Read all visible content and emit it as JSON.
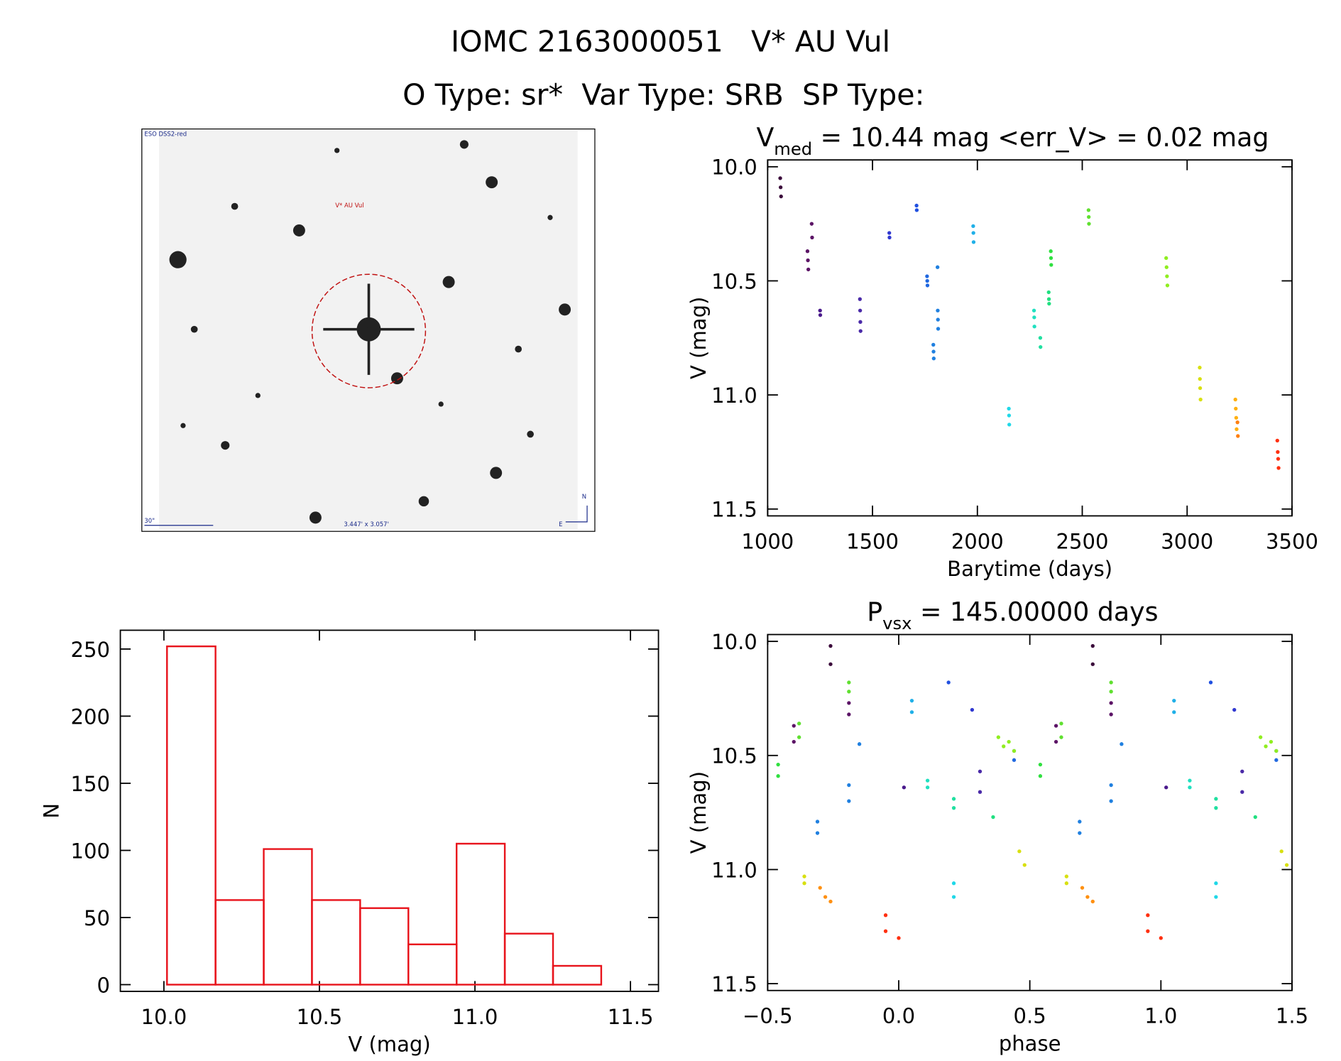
{
  "header": {
    "title": "IOMC 2163000051   V* AU Vul",
    "subtitle": "O Type: sr*  Var Type: SRB  SP Type:"
  },
  "image": {
    "survey": "ESO DSS2-red",
    "target": "V* AU Vul",
    "scale": "30\"",
    "size": "3.447' x 3.057'",
    "north": "N",
    "east": "E"
  },
  "chart_data": [
    {
      "type": "scatter",
      "title": {
        "text": "V",
        "sub": "med",
        "rest": " = 10.44 mag <err_V> = 0.02 mag"
      },
      "x_label": "Barytime (days)",
      "y_label": "V (mag)",
      "xlim": [
        1000,
        3500
      ],
      "xticks": [
        1000,
        1500,
        2000,
        2500,
        3000,
        3500
      ],
      "ylim": [
        9.97,
        11.53
      ],
      "y_reversed": true,
      "yticks": [
        {
          "value": 10,
          "label": "10.0"
        },
        10.5,
        {
          "value": 11,
          "label": "11.0"
        },
        11.5
      ],
      "series": [
        {
          "color": "#3b0b3b",
          "x": [
            1060,
            1062,
            1064
          ],
          "values": [
            10.05,
            10.09,
            10.13
          ]
        },
        {
          "color": "#5c1466",
          "x": [
            1190,
            1192,
            1194,
            1210,
            1212
          ],
          "values": [
            10.37,
            10.41,
            10.45,
            10.25,
            10.31
          ]
        },
        {
          "color": "#4a1a8c",
          "x": [
            1250,
            1251
          ],
          "values": [
            10.63,
            10.65
          ]
        },
        {
          "color": "#4a2aa8",
          "x": [
            1440,
            1441,
            1442,
            1443
          ],
          "values": [
            10.58,
            10.63,
            10.68,
            10.72
          ]
        },
        {
          "color": "#3038d0",
          "x": [
            1580,
            1581
          ],
          "values": [
            10.29,
            10.31
          ]
        },
        {
          "color": "#2050e0",
          "x": [
            1710,
            1711
          ],
          "values": [
            10.17,
            10.19
          ]
        },
        {
          "color": "#2068e0",
          "x": [
            1760,
            1761,
            1762
          ],
          "values": [
            10.48,
            10.5,
            10.52
          ]
        },
        {
          "color": "#2080e0",
          "x": [
            1790,
            1791,
            1792,
            1810,
            1811,
            1812,
            1813
          ],
          "values": [
            10.78,
            10.81,
            10.84,
            10.44,
            10.63,
            10.67,
            10.71
          ]
        },
        {
          "color": "#20b0e8",
          "x": [
            1980,
            1981,
            1982
          ],
          "values": [
            10.26,
            10.29,
            10.33
          ]
        },
        {
          "color": "#20d8e8",
          "x": [
            2150,
            2151,
            2152
          ],
          "values": [
            11.06,
            11.09,
            11.13
          ]
        },
        {
          "color": "#20e0c0",
          "x": [
            2270,
            2271,
            2272
          ],
          "values": [
            10.63,
            10.66,
            10.7
          ]
        },
        {
          "color": "#20e0a0",
          "x": [
            2300,
            2301
          ],
          "values": [
            10.75,
            10.79
          ]
        },
        {
          "color": "#20e080",
          "x": [
            2340,
            2341,
            2342
          ],
          "values": [
            10.55,
            10.58,
            10.6
          ]
        },
        {
          "color": "#30e040",
          "x": [
            2350,
            2351,
            2352
          ],
          "values": [
            10.37,
            10.4,
            10.43
          ]
        },
        {
          "color": "#60e030",
          "x": [
            2530,
            2531,
            2532
          ],
          "values": [
            10.19,
            10.22,
            10.25
          ]
        },
        {
          "color": "#90ee20",
          "x": [
            2900,
            2902,
            2904,
            2906
          ],
          "values": [
            10.4,
            10.44,
            10.48,
            10.52
          ]
        },
        {
          "color": "#d8e010",
          "x": [
            3060,
            3061,
            3062,
            3064
          ],
          "values": [
            10.88,
            10.93,
            10.97,
            11.02
          ]
        },
        {
          "color": "#ffb010",
          "x": [
            3230,
            3232,
            3234,
            3236
          ],
          "values": [
            11.02,
            11.06,
            11.1,
            11.15
          ]
        },
        {
          "color": "#ff8010",
          "x": [
            3240,
            3242
          ],
          "values": [
            11.12,
            11.18
          ]
        },
        {
          "color": "#ff3010",
          "x": [
            3430,
            3432,
            3434,
            3436
          ],
          "values": [
            11.2,
            11.25,
            11.28,
            11.32
          ]
        }
      ]
    },
    {
      "type": "histogram",
      "x_label": "V (mag)",
      "y_label": "N",
      "color": "#e8141c",
      "bins": [
        10.01,
        10.166,
        10.321,
        10.476,
        10.631,
        10.786,
        10.941,
        11.096,
        11.251,
        11.406
      ],
      "values": [
        252,
        63,
        101,
        63,
        57,
        30,
        105,
        38,
        14
      ],
      "xlim": [
        9.86,
        11.59
      ],
      "xticks": [
        {
          "value": 10,
          "label": "10.0"
        },
        10.5,
        {
          "value": 11,
          "label": "11.0"
        },
        11.5
      ],
      "ylim": [
        -5,
        264
      ],
      "yticks": [
        0,
        50,
        100,
        150,
        200,
        250
      ]
    },
    {
      "type": "scatter",
      "title": {
        "text": "P",
        "sub": "vsx",
        "rest": " = 145.00000 days"
      },
      "x_label": "phase",
      "y_label": "V (mag)",
      "xlim": [
        -0.5,
        1.5
      ],
      "xticks": [
        {
          "value": -0.5,
          "label": "−0.5"
        },
        {
          "value": 0,
          "label": "0.0"
        },
        0.5,
        {
          "value": 1,
          "label": "1.0"
        },
        1.5
      ],
      "ylim": [
        9.97,
        11.53
      ],
      "y_reversed": true,
      "yticks": [
        {
          "value": 10,
          "label": "10.0"
        },
        10.5,
        {
          "value": 11,
          "label": "11.0"
        },
        11.5
      ],
      "series": [
        {
          "color": "#3b0b3b",
          "x": [
            -0.26,
            -0.26,
            0.74,
            0.74
          ],
          "values": [
            10.02,
            10.1,
            10.02,
            10.1
          ]
        },
        {
          "color": "#5c1466",
          "x": [
            -0.4,
            -0.4,
            -0.19,
            -0.19,
            0.6,
            0.6,
            0.81,
            0.81
          ],
          "values": [
            10.37,
            10.44,
            10.27,
            10.32,
            10.37,
            10.44,
            10.27,
            10.32
          ]
        },
        {
          "color": "#4a1a8c",
          "x": [
            0.02,
            1.02
          ],
          "values": [
            10.64,
            10.64
          ]
        },
        {
          "color": "#4a2aa8",
          "x": [
            0.31,
            0.31,
            1.31,
            1.31
          ],
          "values": [
            10.57,
            10.66,
            10.57,
            10.66
          ]
        },
        {
          "color": "#3038d0",
          "x": [
            0.28,
            1.28
          ],
          "values": [
            10.3,
            10.3
          ]
        },
        {
          "color": "#2050e0",
          "x": [
            0.19,
            1.19
          ],
          "values": [
            10.18,
            10.18
          ]
        },
        {
          "color": "#2068e0",
          "x": [
            0.44,
            0.44,
            1.44,
            1.44
          ],
          "values": [
            10.48,
            10.52,
            10.48,
            10.52
          ]
        },
        {
          "color": "#2080e0",
          "x": [
            -0.31,
            -0.31,
            -0.19,
            -0.19,
            -0.15,
            0.69,
            0.69,
            0.81,
            0.81,
            0.85
          ],
          "values": [
            10.79,
            10.84,
            10.63,
            10.7,
            10.45,
            10.79,
            10.84,
            10.63,
            10.7,
            10.45
          ]
        },
        {
          "color": "#20b0e8",
          "x": [
            0.05,
            0.05,
            1.05,
            1.05
          ],
          "values": [
            10.26,
            10.31,
            10.26,
            10.31
          ]
        },
        {
          "color": "#20d8e8",
          "x": [
            0.21,
            0.21,
            1.21,
            1.21
          ],
          "values": [
            11.06,
            11.12,
            11.06,
            11.12
          ]
        },
        {
          "color": "#20e0c0",
          "x": [
            0.11,
            0.11,
            1.11,
            1.11
          ],
          "values": [
            10.61,
            10.64,
            10.61,
            10.64
          ]
        },
        {
          "color": "#20e0a0",
          "x": [
            0.21,
            0.21,
            1.21,
            1.21
          ],
          "values": [
            10.69,
            10.73,
            10.69,
            10.73
          ]
        },
        {
          "color": "#20e080",
          "x": [
            0.36,
            1.36
          ],
          "values": [
            10.77,
            10.77
          ]
        },
        {
          "color": "#30e040",
          "x": [
            -0.46,
            -0.46,
            0.54,
            0.54
          ],
          "values": [
            10.54,
            10.59,
            10.54,
            10.59
          ]
        },
        {
          "color": "#60e030",
          "x": [
            -0.38,
            -0.38,
            -0.19,
            -0.19,
            0.62,
            0.62,
            0.81,
            0.81
          ],
          "values": [
            10.36,
            10.42,
            10.18,
            10.22,
            10.36,
            10.42,
            10.18,
            10.22
          ]
        },
        {
          "color": "#90ee20",
          "x": [
            0.38,
            0.4,
            0.42,
            0.44,
            1.38,
            1.4,
            1.42,
            1.44
          ],
          "values": [
            10.42,
            10.46,
            10.44,
            10.48,
            10.42,
            10.46,
            10.44,
            10.48
          ]
        },
        {
          "color": "#d8e010",
          "x": [
            -0.36,
            -0.36,
            0.46,
            0.48,
            0.64,
            0.64,
            1.46,
            1.48
          ],
          "values": [
            11.03,
            11.06,
            10.92,
            10.98,
            11.03,
            11.06,
            10.92,
            10.98
          ]
        },
        {
          "color": "#ff9010",
          "x": [
            -0.3,
            -0.28,
            -0.26,
            0.7,
            0.72,
            0.74
          ],
          "values": [
            11.08,
            11.12,
            11.14,
            11.08,
            11.12,
            11.14
          ]
        },
        {
          "color": "#ff3010",
          "x": [
            -0.05,
            -0.05,
            0,
            0.95,
            0.95,
            1
          ],
          "values": [
            11.2,
            11.27,
            11.3,
            11.2,
            11.27,
            11.3
          ]
        }
      ]
    }
  ]
}
